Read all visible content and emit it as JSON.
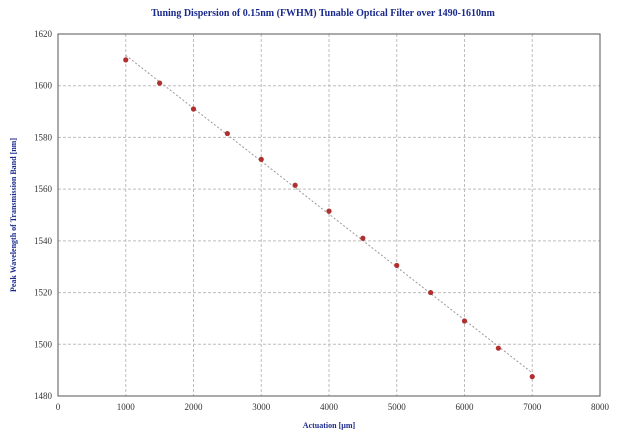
{
  "chart_data": {
    "type": "scatter",
    "title": "Tuning Dispersion of 0.15nm (FWHM) Tunable Optical Filter over 1490-1610nm",
    "xlabel": "Actuation [µm]",
    "ylabel": "Peak Wavelength of Transmission Band [nm]",
    "xlim": [
      0,
      8000
    ],
    "ylim": [
      1480,
      1620
    ],
    "x_ticks": [
      0,
      1000,
      2000,
      3000,
      4000,
      5000,
      6000,
      7000,
      8000
    ],
    "y_ticks": [
      1480,
      1500,
      1520,
      1540,
      1560,
      1580,
      1600,
      1620
    ],
    "grid": true,
    "trend_line": true,
    "series": [
      {
        "color": "#b03030",
        "x": [
          1000,
          1500,
          2000,
          2500,
          3000,
          3500,
          4000,
          4500,
          5000,
          5500,
          6000,
          6500,
          7000
        ],
        "y": [
          1610,
          1601,
          1591,
          1581.5,
          1571.5,
          1561.5,
          1551.5,
          1541,
          1530.5,
          1520,
          1509,
          1498.5,
          1487.5
        ]
      }
    ]
  }
}
